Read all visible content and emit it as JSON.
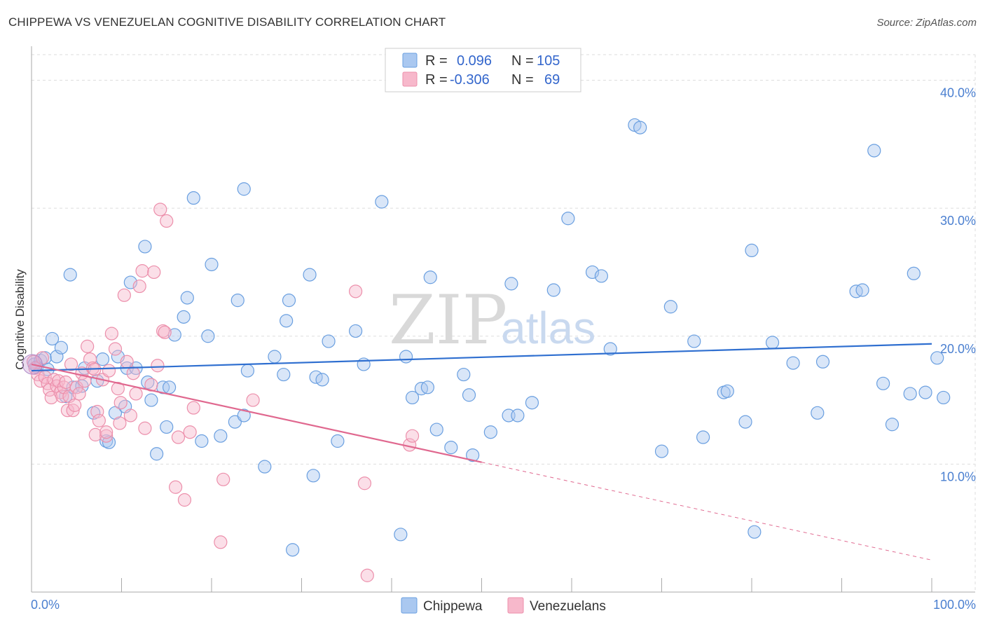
{
  "title": "CHIPPEWA VS VENEZUELAN COGNITIVE DISABILITY CORRELATION CHART",
  "source": "Source: ZipAtlas.com",
  "watermark": {
    "zip": "ZIP",
    "atlas": "atlas"
  },
  "legend_box": {
    "rows": [
      {
        "r_label": "R =",
        "r_value": "0.096",
        "n_label": "N =",
        "n_value": "105"
      },
      {
        "r_label": "R =",
        "r_value": "-0.306",
        "n_label": "N =",
        "n_value": "69"
      }
    ]
  },
  "bottom_legend": {
    "series_a": "Chippewa",
    "series_b": "Venezuelans"
  },
  "colors": {
    "chippewa_fill": "#aac8f0",
    "chippewa_stroke": "#6a9fe0",
    "chippewa_line": "#2f6fd0",
    "venez_fill": "#f7b8cb",
    "venez_stroke": "#ec8fab",
    "venez_line": "#e0688f",
    "axis_text": "#4a7fd0",
    "grid": "#dddddd"
  },
  "chart_data": {
    "type": "scatter",
    "title": "CHIPPEWA VS VENEZUELAN COGNITIVE DISABILITY CORRELATION CHART",
    "xlabel": "",
    "ylabel": "Cognitive Disability",
    "xlim": [
      0,
      100
    ],
    "ylim": [
      0,
      42
    ],
    "x_tick_labels": [
      "0.0%",
      "100.0%"
    ],
    "y_ticks": [
      10,
      20,
      30,
      40
    ],
    "y_tick_labels": [
      "10.0%",
      "20.0%",
      "30.0%",
      "40.0%"
    ],
    "grid": true,
    "series": [
      {
        "name": "Chippewa",
        "r": 0.096,
        "n": 105,
        "trend": {
          "x": [
            0,
            100
          ],
          "y": [
            17.3,
            19.4
          ],
          "dashed_after_x": null
        },
        "points": [
          [
            0.3,
            17.8
          ],
          [
            0.6,
            17.6
          ],
          [
            1.0,
            18.1
          ],
          [
            1.5,
            18.3
          ],
          [
            1.8,
            17.4
          ],
          [
            2.3,
            19.8
          ],
          [
            2.8,
            18.4
          ],
          [
            3.3,
            19.1
          ],
          [
            3.8,
            15.3
          ],
          [
            4.3,
            24.8
          ],
          [
            4.6,
            16.0
          ],
          [
            5.6,
            16.1
          ],
          [
            5.9,
            17.5
          ],
          [
            6.9,
            14.0
          ],
          [
            7.3,
            16.5
          ],
          [
            7.9,
            18.2
          ],
          [
            8.3,
            11.8
          ],
          [
            8.6,
            11.7
          ],
          [
            9.6,
            18.4
          ],
          [
            9.3,
            14.0
          ],
          [
            10.4,
            14.5
          ],
          [
            10.6,
            17.5
          ],
          [
            11.0,
            24.2
          ],
          [
            11.6,
            17.5
          ],
          [
            12.6,
            27.0
          ],
          [
            12.9,
            16.4
          ],
          [
            13.3,
            15.0
          ],
          [
            13.9,
            10.8
          ],
          [
            14.6,
            16.0
          ],
          [
            15.0,
            12.9
          ],
          [
            15.3,
            16.0
          ],
          [
            15.9,
            20.1
          ],
          [
            16.9,
            21.5
          ],
          [
            17.3,
            23.0
          ],
          [
            18.0,
            30.8
          ],
          [
            18.9,
            11.8
          ],
          [
            19.6,
            20.0
          ],
          [
            20.0,
            25.6
          ],
          [
            21.0,
            12.2
          ],
          [
            22.6,
            13.3
          ],
          [
            22.9,
            22.8
          ],
          [
            23.6,
            13.8
          ],
          [
            23.6,
            31.5
          ],
          [
            24.0,
            17.3
          ],
          [
            25.9,
            9.8
          ],
          [
            27.0,
            18.4
          ],
          [
            28.0,
            17.0
          ],
          [
            28.3,
            21.2
          ],
          [
            28.6,
            22.8
          ],
          [
            29.0,
            3.3
          ],
          [
            30.9,
            24.8
          ],
          [
            31.3,
            9.1
          ],
          [
            31.6,
            16.8
          ],
          [
            32.3,
            16.6
          ],
          [
            33.0,
            19.6
          ],
          [
            34.0,
            11.8
          ],
          [
            36.0,
            20.4
          ],
          [
            36.9,
            17.8
          ],
          [
            38.9,
            30.5
          ],
          [
            41.0,
            4.5
          ],
          [
            41.6,
            18.4
          ],
          [
            42.3,
            15.2
          ],
          [
            43.3,
            15.9
          ],
          [
            44.0,
            16.0
          ],
          [
            44.3,
            24.6
          ],
          [
            45.0,
            12.7
          ],
          [
            46.6,
            11.3
          ],
          [
            48.0,
            17.0
          ],
          [
            48.6,
            15.4
          ],
          [
            49.0,
            10.7
          ],
          [
            51.0,
            12.5
          ],
          [
            53.0,
            13.8
          ],
          [
            53.3,
            24.1
          ],
          [
            54.0,
            13.8
          ],
          [
            55.6,
            14.8
          ],
          [
            58.0,
            23.6
          ],
          [
            59.6,
            29.2
          ],
          [
            62.3,
            25.0
          ],
          [
            63.3,
            24.7
          ],
          [
            64.3,
            19.0
          ],
          [
            67.0,
            36.5
          ],
          [
            67.6,
            36.3
          ],
          [
            70.0,
            11.0
          ],
          [
            71.0,
            22.3
          ],
          [
            73.6,
            19.6
          ],
          [
            74.6,
            12.1
          ],
          [
            76.9,
            15.6
          ],
          [
            77.3,
            15.7
          ],
          [
            79.3,
            13.3
          ],
          [
            80.0,
            26.7
          ],
          [
            80.3,
            4.7
          ],
          [
            82.3,
            19.5
          ],
          [
            84.6,
            17.9
          ],
          [
            87.3,
            14.0
          ],
          [
            87.9,
            18.0
          ],
          [
            91.6,
            23.5
          ],
          [
            92.3,
            23.6
          ],
          [
            93.6,
            34.5
          ],
          [
            94.6,
            16.3
          ],
          [
            95.6,
            13.1
          ],
          [
            97.6,
            15.5
          ],
          [
            98.0,
            24.9
          ],
          [
            99.3,
            15.6
          ],
          [
            100.6,
            18.3
          ],
          [
            101.3,
            15.2
          ]
        ]
      },
      {
        "name": "Venezuelans",
        "r": -0.306,
        "n": 69,
        "trend": {
          "x": [
            0,
            100
          ],
          "y": [
            17.8,
            2.5
          ],
          "dashed_after_x": 50
        },
        "points": [
          [
            0.2,
            18.0
          ],
          [
            0.4,
            17.5
          ],
          [
            0.7,
            17.0
          ],
          [
            1.0,
            16.5
          ],
          [
            1.2,
            18.3
          ],
          [
            1.5,
            16.8
          ],
          [
            1.8,
            16.3
          ],
          [
            2.0,
            15.8
          ],
          [
            2.2,
            15.2
          ],
          [
            2.5,
            16.6
          ],
          [
            2.8,
            16.1
          ],
          [
            3.0,
            16.5
          ],
          [
            3.2,
            15.6
          ],
          [
            3.4,
            15.3
          ],
          [
            3.6,
            16.0
          ],
          [
            3.8,
            16.4
          ],
          [
            4.0,
            14.2
          ],
          [
            4.2,
            15.3
          ],
          [
            4.4,
            17.8
          ],
          [
            4.6,
            14.2
          ],
          [
            4.8,
            14.6
          ],
          [
            5.0,
            16.0
          ],
          [
            5.3,
            15.5
          ],
          [
            5.6,
            17.1
          ],
          [
            5.9,
            16.5
          ],
          [
            6.2,
            19.2
          ],
          [
            6.5,
            18.2
          ],
          [
            6.8,
            17.5
          ],
          [
            7.0,
            17.4
          ],
          [
            7.1,
            12.3
          ],
          [
            7.3,
            14.1
          ],
          [
            7.5,
            13.4
          ],
          [
            7.9,
            16.6
          ],
          [
            8.3,
            12.2
          ],
          [
            8.3,
            12.5
          ],
          [
            8.6,
            17.3
          ],
          [
            8.9,
            20.2
          ],
          [
            9.3,
            19.0
          ],
          [
            9.6,
            15.9
          ],
          [
            9.8,
            13.2
          ],
          [
            9.9,
            14.8
          ],
          [
            10.3,
            23.2
          ],
          [
            10.6,
            18.0
          ],
          [
            11.0,
            13.8
          ],
          [
            11.3,
            17.1
          ],
          [
            11.6,
            15.5
          ],
          [
            12.0,
            23.9
          ],
          [
            12.3,
            25.1
          ],
          [
            12.6,
            12.8
          ],
          [
            13.3,
            16.2
          ],
          [
            13.6,
            25.0
          ],
          [
            14.0,
            17.7
          ],
          [
            14.3,
            29.9
          ],
          [
            14.6,
            20.4
          ],
          [
            14.8,
            20.3
          ],
          [
            15.0,
            29.0
          ],
          [
            16.0,
            8.2
          ],
          [
            16.3,
            12.1
          ],
          [
            17.0,
            7.2
          ],
          [
            17.6,
            12.5
          ],
          [
            18.0,
            14.4
          ],
          [
            21.0,
            3.9
          ],
          [
            21.3,
            8.8
          ],
          [
            24.6,
            15.0
          ],
          [
            36.0,
            23.5
          ],
          [
            37.0,
            8.5
          ],
          [
            37.3,
            1.3
          ],
          [
            42.0,
            11.5
          ],
          [
            42.3,
            12.2
          ]
        ]
      }
    ]
  }
}
